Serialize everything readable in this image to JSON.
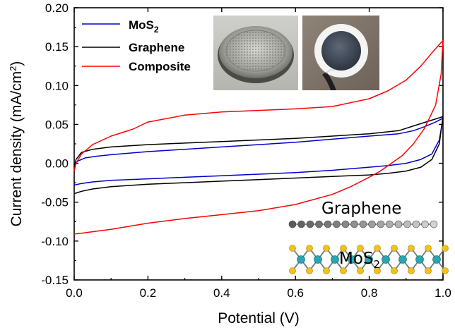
{
  "chart_data": {
    "type": "line",
    "xlabel": "Potential (V)",
    "ylabel": "Current density (mA/cm",
    "ylabel_sup": "2",
    "ylabel_close": ")",
    "xlim": [
      0.0,
      1.0
    ],
    "ylim": [
      -0.15,
      0.2
    ],
    "xticks": [
      0.0,
      0.2,
      0.4,
      0.6,
      0.8,
      1.0
    ],
    "xtick_labels": [
      "0.0",
      "0.2",
      "0.4",
      "0.6",
      "0.8",
      "1.0"
    ],
    "yticks": [
      -0.15,
      -0.1,
      -0.05,
      0.0,
      0.05,
      0.1,
      0.15,
      0.2
    ],
    "ytick_labels": [
      "-0.15",
      "-0.10",
      "-0.05",
      "0.00",
      "0.05",
      "0.10",
      "0.15",
      "0.20"
    ],
    "grid": false,
    "legend_position": "top-left",
    "series": [
      {
        "name": "MoS",
        "name_sub": "2",
        "color": "#0000cc",
        "x": [
          0.0,
          0.01,
          0.03,
          0.06,
          0.1,
          0.2,
          0.3,
          0.4,
          0.5,
          0.6,
          0.7,
          0.8,
          0.88,
          0.92,
          0.95,
          0.98,
          1.0,
          0.99,
          0.97,
          0.94,
          0.9,
          0.85,
          0.8,
          0.7,
          0.6,
          0.5,
          0.4,
          0.3,
          0.2,
          0.1,
          0.05,
          0.02,
          0.0
        ],
        "y": [
          -0.002,
          0.003,
          0.007,
          0.009,
          0.011,
          0.015,
          0.018,
          0.021,
          0.024,
          0.027,
          0.031,
          0.035,
          0.038,
          0.042,
          0.047,
          0.053,
          0.058,
          0.03,
          0.012,
          0.005,
          0.0,
          -0.003,
          -0.005,
          -0.009,
          -0.012,
          -0.014,
          -0.016,
          -0.018,
          -0.02,
          -0.022,
          -0.024,
          -0.026,
          -0.028
        ]
      },
      {
        "name": "Graphene",
        "color": "#000000",
        "x": [
          0.0,
          0.005,
          0.02,
          0.05,
          0.1,
          0.2,
          0.3,
          0.4,
          0.5,
          0.6,
          0.7,
          0.8,
          0.88,
          0.92,
          0.96,
          1.0,
          0.99,
          0.97,
          0.94,
          0.9,
          0.85,
          0.8,
          0.7,
          0.6,
          0.5,
          0.4,
          0.3,
          0.2,
          0.1,
          0.05,
          0.02,
          0.0
        ],
        "y": [
          -0.005,
          0.005,
          0.014,
          0.018,
          0.021,
          0.024,
          0.026,
          0.028,
          0.03,
          0.032,
          0.035,
          0.038,
          0.042,
          0.048,
          0.054,
          0.06,
          0.025,
          0.005,
          -0.005,
          -0.01,
          -0.013,
          -0.015,
          -0.017,
          -0.019,
          -0.021,
          -0.023,
          -0.025,
          -0.027,
          -0.03,
          -0.033,
          -0.036,
          -0.039
        ]
      },
      {
        "name": "Composite",
        "color": "#ff0000",
        "x": [
          0.0,
          0.005,
          0.02,
          0.05,
          0.1,
          0.16,
          0.2,
          0.3,
          0.4,
          0.5,
          0.6,
          0.7,
          0.8,
          0.85,
          0.9,
          0.94,
          0.97,
          1.0,
          0.995,
          0.98,
          0.95,
          0.92,
          0.89,
          0.86,
          0.83,
          0.8,
          0.75,
          0.7,
          0.6,
          0.5,
          0.4,
          0.3,
          0.2,
          0.1,
          0.05,
          0.02,
          0.0
        ],
        "y": [
          -0.01,
          0.0,
          0.012,
          0.024,
          0.035,
          0.044,
          0.053,
          0.062,
          0.066,
          0.068,
          0.07,
          0.073,
          0.083,
          0.093,
          0.107,
          0.125,
          0.142,
          0.158,
          0.115,
          0.075,
          0.045,
          0.025,
          0.01,
          0.0,
          -0.01,
          -0.018,
          -0.03,
          -0.04,
          -0.053,
          -0.061,
          -0.066,
          -0.071,
          -0.077,
          -0.085,
          -0.088,
          -0.09,
          -0.091
        ]
      }
    ]
  },
  "inset_labels": {
    "graphene": "Graphene",
    "mos2_base": "MoS",
    "mos2_sub": "2"
  },
  "icons": {
    "coin_cell_photo": "coin-cell-photo",
    "electrode_photo": "electrode-photo"
  }
}
